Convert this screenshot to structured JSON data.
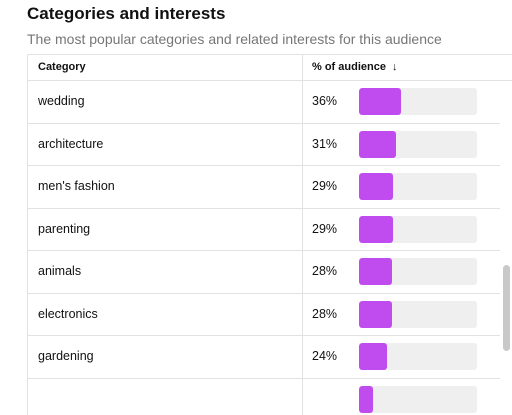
{
  "section": {
    "title": "Categories and interests",
    "subtitle": "The most popular categories and related interests for this audience"
  },
  "table": {
    "headers": {
      "category": "Category",
      "percent": "% of audience",
      "sort_icon": "arrow-down-icon"
    },
    "bar_color": "#c04cf0",
    "track_color": "#efefef",
    "rows": [
      {
        "category": "wedding",
        "percent_label": "36%",
        "percent": 36
      },
      {
        "category": "architecture",
        "percent_label": "31%",
        "percent": 31
      },
      {
        "category": "men's fashion",
        "percent_label": "29%",
        "percent": 29
      },
      {
        "category": "parenting",
        "percent_label": "29%",
        "percent": 29
      },
      {
        "category": "animals",
        "percent_label": "28%",
        "percent": 28
      },
      {
        "category": "electronics",
        "percent_label": "28%",
        "percent": 28
      },
      {
        "category": "gardening",
        "percent_label": "24%",
        "percent": 24
      },
      {
        "category": "",
        "percent_label": "",
        "percent": 12
      }
    ]
  }
}
